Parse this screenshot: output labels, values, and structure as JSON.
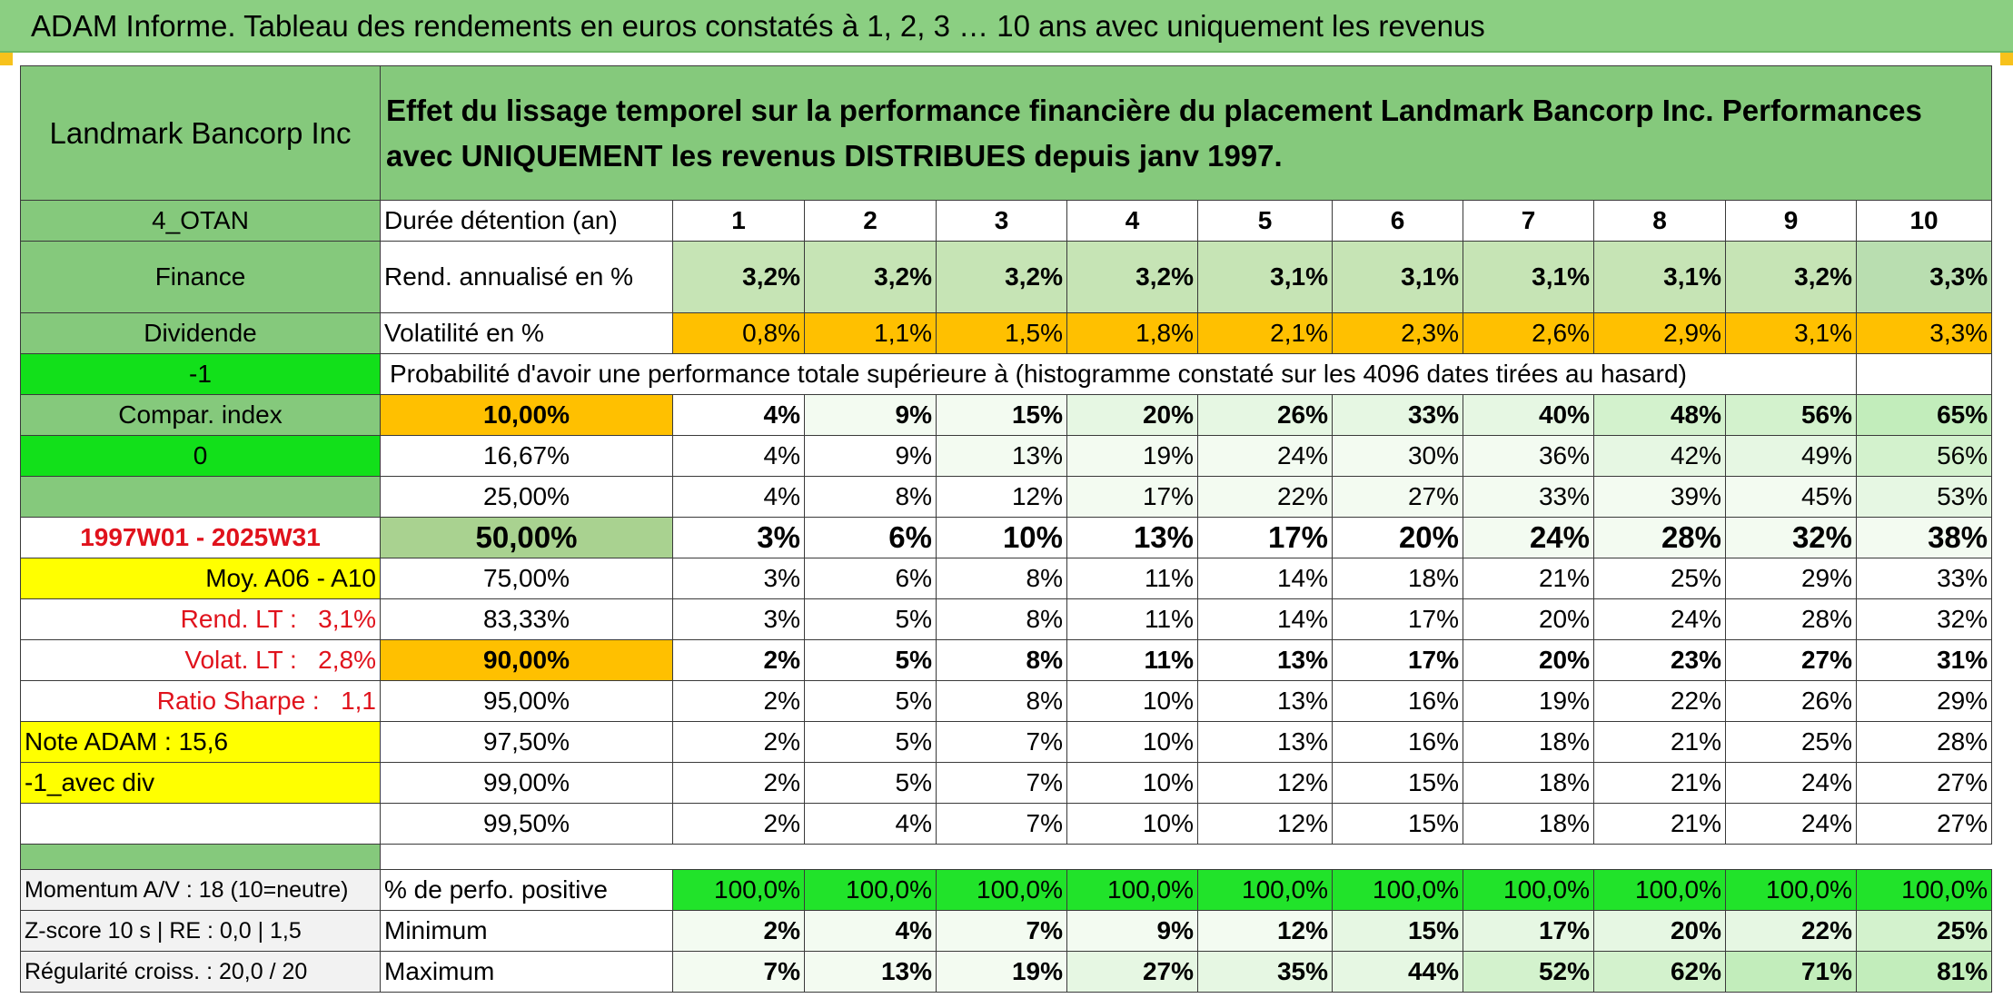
{
  "title": "ADAM Informe. Tableau des rendements en euros constatés à 1, 2, 3 … 10 ans avec uniquement les revenus",
  "company": "Landmark Bancorp Inc",
  "description": "Effet du lissage temporel sur la performance financière du placement Landmark Bancorp Inc. Performances avec UNIQUEMENT les revenus DISTRIBUES depuis janv 1997.",
  "sidebar": {
    "code": "4_OTAN",
    "sector": "Finance",
    "type": "Dividende",
    "flag1": "-1",
    "compar_index": "Compar. index",
    "flag2": "0",
    "blank": "",
    "period": "1997W01 - 2025W31",
    "moy": "Moy. A06 - A10",
    "rend_lt_label": "Rend. LT :",
    "rend_lt_value": "3,1%",
    "volat_lt_label": "Volat. LT :",
    "volat_lt_value": "2,8%",
    "sharpe_label": "Ratio Sharpe :",
    "sharpe_value": "1,1",
    "note": "Note ADAM : 15,6",
    "div": "-1_avec div",
    "momentum": "Momentum A/V : 18 (10=neutre)",
    "zscore": "Z-score 10 s | RE : 0,0 | 1,5",
    "regularite": "Régularité croiss. : 20,0 / 20"
  },
  "labels": {
    "duree": "Durée détention (an)",
    "rend": "Rend. annualisé en %",
    "vol": "Volatilité en %",
    "proba": "Probabilité d'avoir une performance totale supérieure à (histogramme constaté sur les 4096 dates tirées au hasard)",
    "pos": "% de perfo. positive",
    "min": "Minimum",
    "max": "Maximum"
  },
  "years": [
    "1",
    "2",
    "3",
    "4",
    "5",
    "6",
    "7",
    "8",
    "9",
    "10"
  ],
  "rend": [
    "3,2%",
    "3,2%",
    "3,2%",
    "3,2%",
    "3,1%",
    "3,1%",
    "3,1%",
    "3,1%",
    "3,2%",
    "3,3%"
  ],
  "vol": [
    "0,8%",
    "1,1%",
    "1,5%",
    "1,8%",
    "2,1%",
    "2,3%",
    "2,6%",
    "2,9%",
    "3,1%",
    "3,3%"
  ],
  "percentiles": [
    {
      "label": "10,00%",
      "values": [
        "4%",
        "9%",
        "15%",
        "20%",
        "26%",
        "33%",
        "40%",
        "48%",
        "56%",
        "65%"
      ]
    },
    {
      "label": "16,67%",
      "values": [
        "4%",
        "9%",
        "13%",
        "19%",
        "24%",
        "30%",
        "36%",
        "42%",
        "49%",
        "56%"
      ]
    },
    {
      "label": "25,00%",
      "values": [
        "4%",
        "8%",
        "12%",
        "17%",
        "22%",
        "27%",
        "33%",
        "39%",
        "45%",
        "53%"
      ]
    },
    {
      "label": "50,00%",
      "values": [
        "3%",
        "6%",
        "10%",
        "13%",
        "17%",
        "20%",
        "24%",
        "28%",
        "32%",
        "38%"
      ]
    },
    {
      "label": "75,00%",
      "values": [
        "3%",
        "6%",
        "8%",
        "11%",
        "14%",
        "18%",
        "21%",
        "25%",
        "29%",
        "33%"
      ]
    },
    {
      "label": "83,33%",
      "values": [
        "3%",
        "5%",
        "8%",
        "11%",
        "14%",
        "17%",
        "20%",
        "24%",
        "28%",
        "32%"
      ]
    },
    {
      "label": "90,00%",
      "values": [
        "2%",
        "5%",
        "8%",
        "11%",
        "13%",
        "17%",
        "20%",
        "23%",
        "27%",
        "31%"
      ]
    },
    {
      "label": "95,00%",
      "values": [
        "2%",
        "5%",
        "8%",
        "10%",
        "13%",
        "16%",
        "19%",
        "22%",
        "26%",
        "29%"
      ]
    },
    {
      "label": "97,50%",
      "values": [
        "2%",
        "5%",
        "7%",
        "10%",
        "13%",
        "16%",
        "18%",
        "21%",
        "25%",
        "28%"
      ]
    },
    {
      "label": "99,00%",
      "values": [
        "2%",
        "5%",
        "7%",
        "10%",
        "12%",
        "15%",
        "18%",
        "21%",
        "24%",
        "27%"
      ]
    },
    {
      "label": "99,50%",
      "values": [
        "2%",
        "4%",
        "7%",
        "10%",
        "12%",
        "15%",
        "18%",
        "21%",
        "24%",
        "27%"
      ]
    }
  ],
  "pos": [
    "100,0%",
    "100,0%",
    "100,0%",
    "100,0%",
    "100,0%",
    "100,0%",
    "100,0%",
    "100,0%",
    "100,0%",
    "100,0%"
  ],
  "min": [
    "2%",
    "4%",
    "7%",
    "9%",
    "12%",
    "15%",
    "17%",
    "20%",
    "22%",
    "25%"
  ],
  "max": [
    "7%",
    "13%",
    "19%",
    "27%",
    "35%",
    "44%",
    "52%",
    "62%",
    "71%",
    "81%"
  ],
  "colors": {
    "header_green": "#85c97c",
    "orange": "#ffc000",
    "bright_green": "#12e01a",
    "yellow": "#ffff00",
    "red_text": "#e0121c"
  }
}
